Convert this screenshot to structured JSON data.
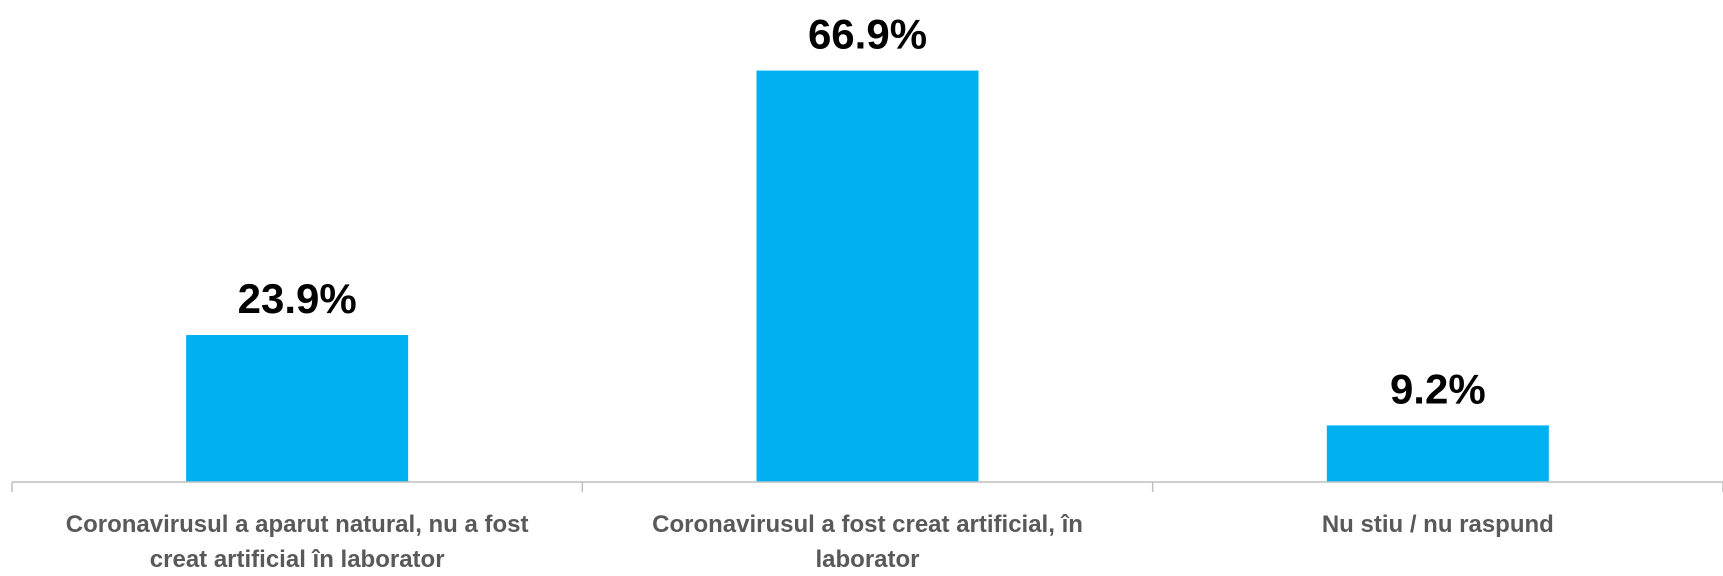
{
  "chart_data": {
    "type": "bar",
    "categories": [
      "Coronavirusul a aparut natural, nu a fost creat artificial în laborator",
      "Coronavirusul a fost creat artificial, în laborator",
      "Nu stiu / nu raspund"
    ],
    "category_lines": [
      [
        "Coronavirusul a aparut natural, nu a fost",
        "creat artificial în laborator"
      ],
      [
        "Coronavirusul a fost creat artificial, în",
        "laborator"
      ],
      [
        "Nu stiu / nu raspund"
      ]
    ],
    "values": [
      23.9,
      66.9,
      9.2
    ],
    "data_labels": [
      "23.9%",
      "66.9%",
      "9.2%"
    ],
    "ylim": [
      0,
      70
    ],
    "grid": false,
    "legend": "none",
    "colors": {
      "bar": "#00B0F0",
      "axis": "#BFBFBF",
      "value_label": "#000000",
      "category_label": "#595959"
    }
  }
}
